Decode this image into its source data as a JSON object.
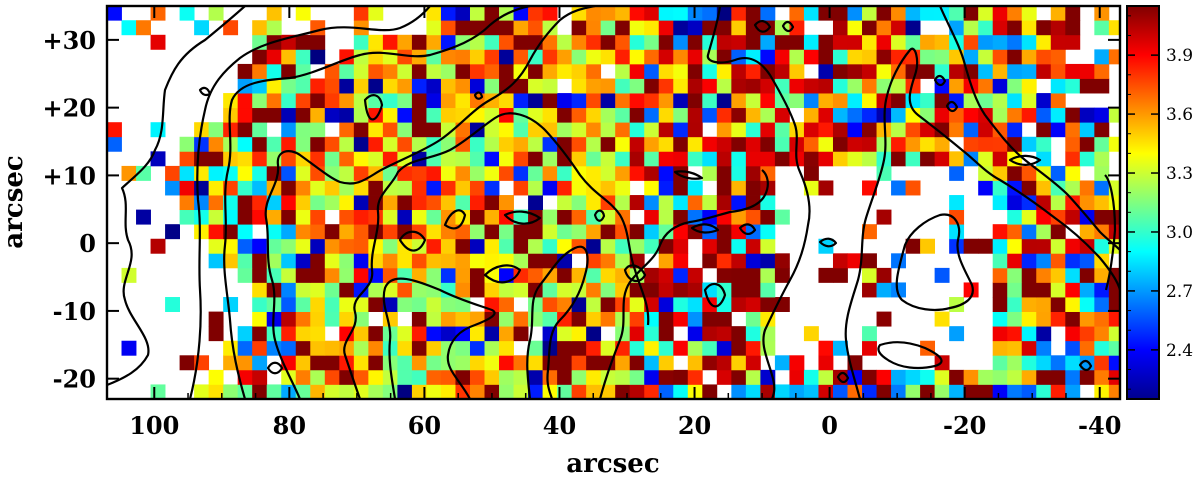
{
  "chart_data": {
    "type": "heatmap",
    "title": "",
    "xlabel": "arcsec",
    "ylabel": "arcsec",
    "xlim": [
      107,
      -43
    ],
    "ylim": [
      -23,
      35
    ],
    "x_ticks": [
      {
        "value": 100,
        "label": "100"
      },
      {
        "value": 80,
        "label": "80"
      },
      {
        "value": 60,
        "label": "60"
      },
      {
        "value": 40,
        "label": "40"
      },
      {
        "value": 20,
        "label": "20"
      },
      {
        "value": 0,
        "label": "0"
      },
      {
        "value": -20,
        "label": "-20"
      },
      {
        "value": -40,
        "label": "-40"
      }
    ],
    "y_ticks": [
      {
        "value": 30,
        "label": "+30"
      },
      {
        "value": 20,
        "label": "+20"
      },
      {
        "value": 10,
        "label": "+10"
      },
      {
        "value": 0,
        "label": "0"
      },
      {
        "value": -10,
        "label": "-10"
      },
      {
        "value": -20,
        "label": "-20"
      }
    ],
    "colorbar": {
      "colormap": "jet",
      "range": [
        2.15,
        4.15
      ],
      "tick_labels": [
        "3.9",
        "3.6",
        "3.3",
        "3.0",
        "2.7",
        "2.4"
      ],
      "tick_values": [
        3.9,
        3.6,
        3.3,
        3.0,
        2.7,
        2.4
      ]
    },
    "pixel_grid": {
      "cell_size_arcsec": 2.15,
      "x_start": 107,
      "x_end": -43,
      "y_start": -23,
      "y_end": 35,
      "seed": 7,
      "note": ""
    },
    "contour_color": "#000000"
  }
}
